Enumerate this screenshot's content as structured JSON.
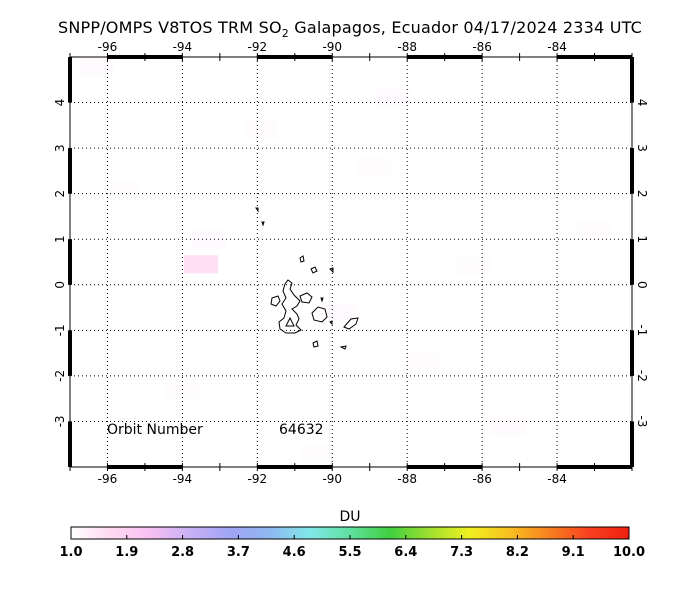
{
  "title": {
    "prefix": "SNPP/OMPS V8TOS TRM SO",
    "subscript": "2",
    "suffix": " Galapagos, Ecuador 04/17/2024 2334 UTC"
  },
  "map": {
    "lon_range": [
      -97,
      -82
    ],
    "lat_range": [
      -4,
      5
    ],
    "lon_ticks": [
      -96,
      -94,
      -92,
      -90,
      -88,
      -86,
      -84
    ],
    "lat_ticks": [
      -3,
      -2,
      -1,
      0,
      1,
      2,
      3,
      4
    ],
    "grid": "dotted",
    "gridlines_lon": [
      -96,
      -94,
      -92,
      -90,
      -88,
      -86,
      -84
    ],
    "gridlines_lat": [
      -3,
      -2,
      -1,
      0,
      1,
      2,
      3,
      4
    ],
    "frame_ticks_lon": [
      -97,
      -96,
      -95,
      -94,
      -93,
      -92,
      -91,
      -90,
      -89,
      -88,
      -87,
      -86,
      -85,
      -84,
      -83,
      -82
    ],
    "frame_ticks_lat": [
      -4,
      -3,
      -2,
      -1,
      0,
      1,
      2,
      3,
      4,
      5
    ],
    "coastline_color": "#000000"
  },
  "orbit": {
    "label": "Orbit Number",
    "value": "64632"
  },
  "colorbar": {
    "title": "DU",
    "tick_labels": [
      "1.0",
      "1.9",
      "2.8",
      "3.7",
      "4.6",
      "5.5",
      "6.4",
      "7.3",
      "8.2",
      "9.1",
      "10.0"
    ],
    "colors": [
      "#ffffff",
      "#ffd9f2",
      "#f7c0f2",
      "#c8b0f5",
      "#a0a5f5",
      "#8fb8f0",
      "#80e8e8",
      "#60e0a0",
      "#40d040",
      "#a0e030",
      "#f0f020",
      "#f8c020",
      "#f88020",
      "#f84020",
      "#f02010"
    ]
  },
  "so2_cells": [
    {
      "lon": -93.5,
      "lat": 0.45,
      "du": 1.6
    },
    {
      "lon": -96.3,
      "lat": 4.8,
      "du": 1.1
    },
    {
      "lon": -88.4,
      "lat": 4.1,
      "du": 1.1
    },
    {
      "lon": -93.3,
      "lat": 1.0,
      "du": 1.1
    },
    {
      "lon": -91.9,
      "lat": 3.4,
      "du": 1.05
    },
    {
      "lon": -89.8,
      "lat": -0.6,
      "du": 1.1
    },
    {
      "lon": -87.6,
      "lat": -1.7,
      "du": 1.05
    },
    {
      "lon": -85.3,
      "lat": -3.1,
      "du": 1.1
    },
    {
      "lon": -94.0,
      "lat": -2.3,
      "du": 1.05
    },
    {
      "lon": -90.4,
      "lat": -3.7,
      "du": 1.05
    },
    {
      "lon": -88.9,
      "lat": 2.6,
      "du": 1.05
    },
    {
      "lon": -95.6,
      "lat": 2.1,
      "du": 1.05
    },
    {
      "lon": -86.2,
      "lat": 0.4,
      "du": 1.05
    },
    {
      "lon": -83.0,
      "lat": 1.2,
      "du": 1.05
    }
  ],
  "islands": [
    {
      "name": "isabela-island"
    },
    {
      "name": "fernandina-island"
    },
    {
      "name": "santiago-island"
    },
    {
      "name": "santa-cruz-island"
    },
    {
      "name": "san-cristobal-island"
    },
    {
      "name": "floreana-island"
    },
    {
      "name": "espanola-island"
    },
    {
      "name": "marchena-island"
    },
    {
      "name": "pinta-island"
    },
    {
      "name": "genovesa-island"
    },
    {
      "name": "darwin-island"
    },
    {
      "name": "wolf-island"
    }
  ]
}
